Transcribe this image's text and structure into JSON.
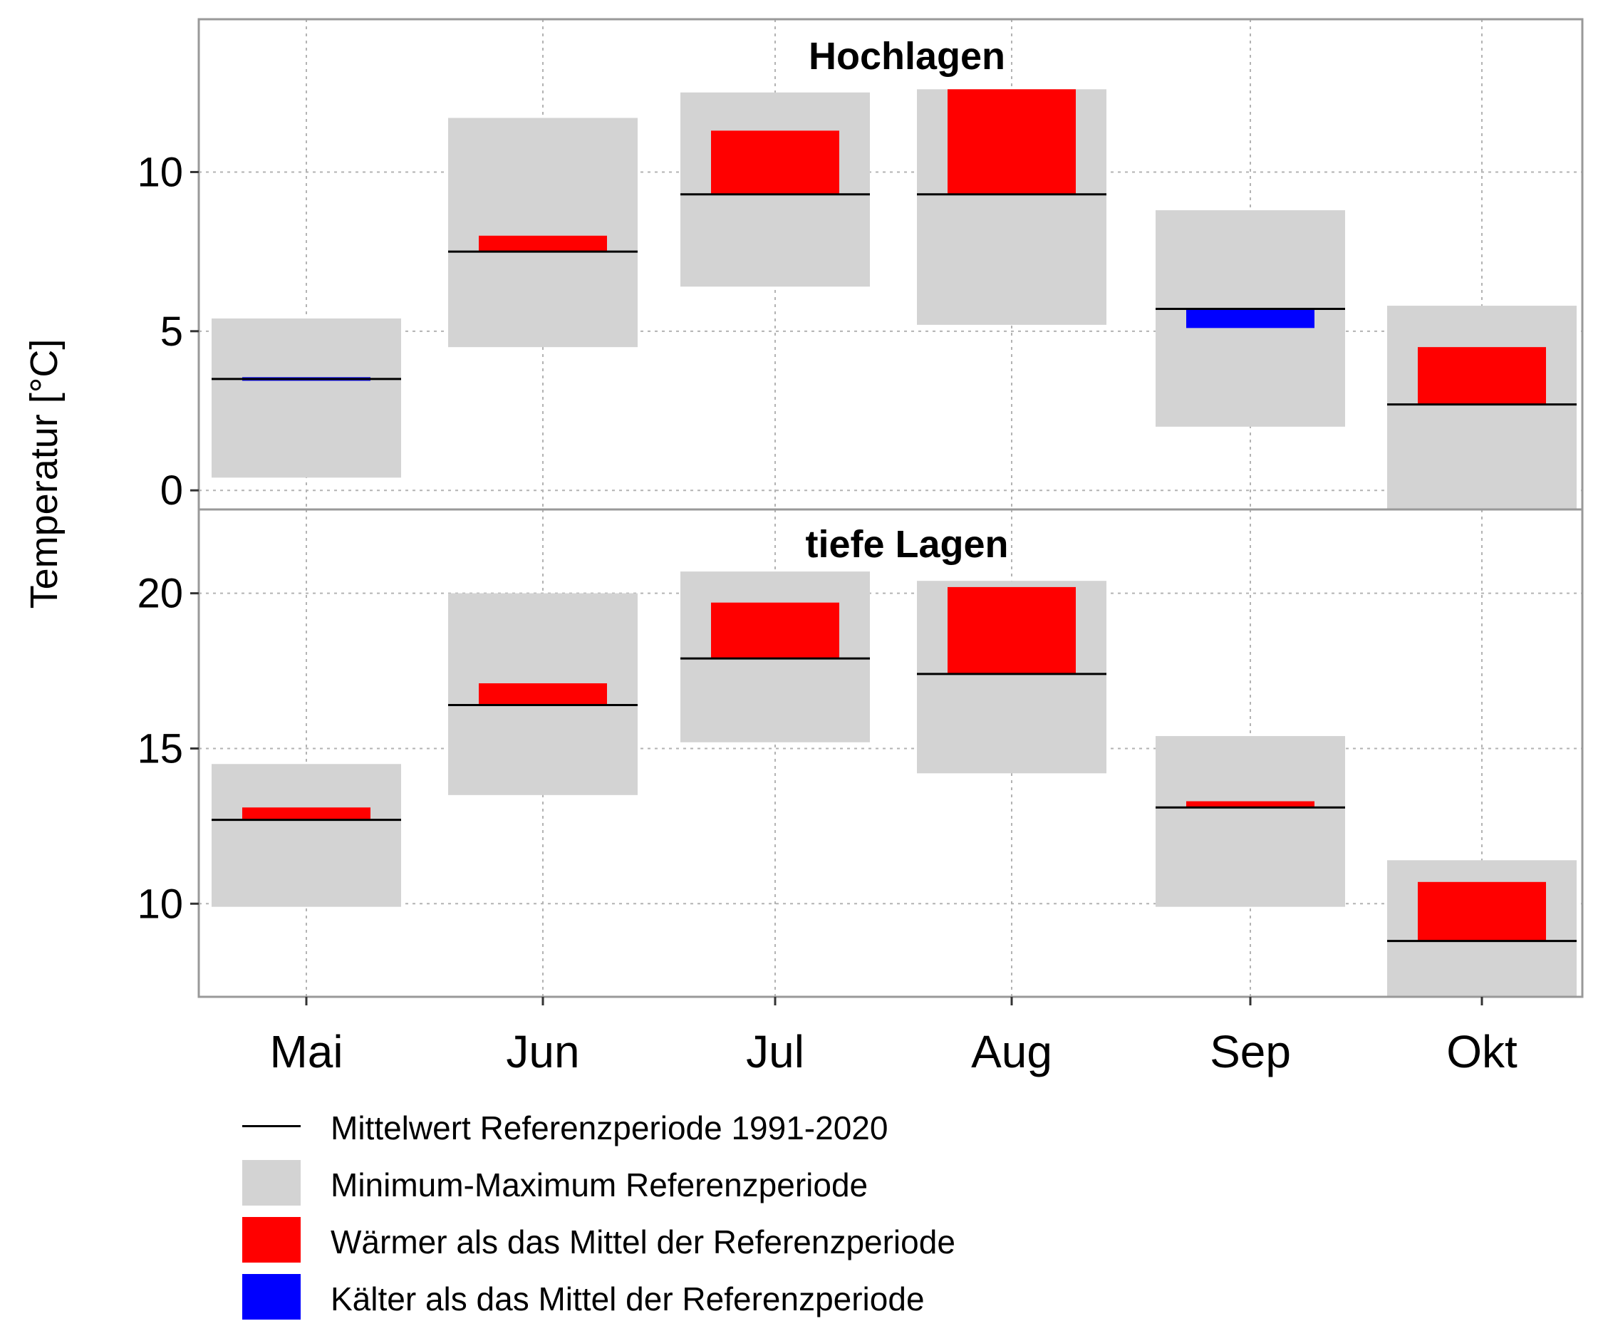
{
  "ylabel": "Temperatur [°C]",
  "colors": {
    "range": "#d3d3d3",
    "warmer": "#ff0000",
    "colder": "#0000ff",
    "mean": "#000000",
    "grid": "#b3b3b3",
    "border": "#999999"
  },
  "chart_data": [
    {
      "type": "bar",
      "title": "Hochlagen",
      "categories": [
        "Mai",
        "Jun",
        "Jul",
        "Aug",
        "Sep",
        "Okt"
      ],
      "ylim": [
        -0.6,
        14.8
      ],
      "yticks": [
        0,
        5,
        10
      ],
      "grid": true,
      "ref_min": [
        0.4,
        4.5,
        6.4,
        5.2,
        2.0,
        -0.6
      ],
      "ref_max": [
        5.4,
        11.7,
        12.5,
        12.6,
        8.8,
        5.8
      ],
      "ref_mean": [
        3.5,
        7.5,
        9.3,
        9.3,
        5.7,
        2.7
      ],
      "value": [
        3.5,
        8.0,
        11.3,
        12.6,
        5.1,
        4.5
      ]
    },
    {
      "type": "bar",
      "title": "tiefe Lagen",
      "categories": [
        "Mai",
        "Jun",
        "Jul",
        "Aug",
        "Sep",
        "Okt"
      ],
      "ylim": [
        7.0,
        22.7
      ],
      "yticks": [
        10,
        15,
        20
      ],
      "grid": true,
      "ref_min": [
        9.9,
        13.5,
        15.2,
        14.2,
        9.9,
        7.0
      ],
      "ref_max": [
        14.5,
        20.0,
        20.7,
        20.4,
        15.4,
        11.4
      ],
      "ref_mean": [
        12.7,
        16.4,
        17.9,
        17.4,
        13.1,
        8.8
      ],
      "value": [
        13.1,
        17.1,
        19.7,
        20.2,
        13.3,
        10.7
      ]
    }
  ],
  "legend": [
    {
      "key": "mean",
      "label": "Mittelwert Referenzperiode 1991-2020"
    },
    {
      "key": "range",
      "label": "Minimum-Maximum Referenzperiode"
    },
    {
      "key": "warmer",
      "label": "Wärmer als das Mittel der Referenzperiode"
    },
    {
      "key": "colder",
      "label": "Kälter als das Mittel der Referenzperiode"
    }
  ]
}
